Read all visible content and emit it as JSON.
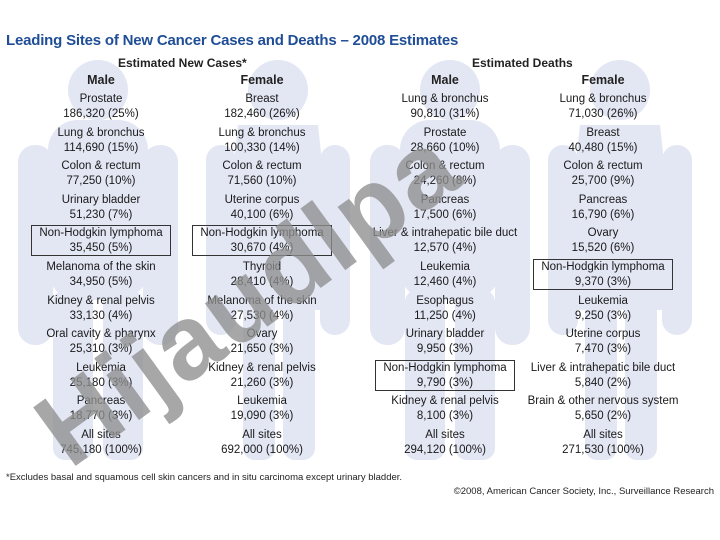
{
  "title": "Leading Sites of New Cancer Cases and Deaths – 2008 Estimates",
  "groups": {
    "new_cases": "Estimated New Cases*",
    "deaths": "Estimated Deaths"
  },
  "columns": [
    {
      "header": "Male",
      "entries": [
        {
          "site": "Prostate",
          "value": "186,320 (25%)"
        },
        {
          "site": "Lung & bronchus",
          "value": "114,690 (15%)"
        },
        {
          "site": "Colon & rectum",
          "value": "77,250 (10%)"
        },
        {
          "site": "Urinary bladder",
          "value": "51,230 (7%)"
        },
        {
          "site": "Non-Hodgkin lymphoma",
          "value": "35,450 (5%)",
          "boxed": true
        },
        {
          "site": "Melanoma of the skin",
          "value": "34,950 (5%)"
        },
        {
          "site": "Kidney & renal pelvis",
          "value": "33,130 (4%)"
        },
        {
          "site": "Oral cavity & pharynx",
          "value": "25,310 (3%)"
        },
        {
          "site": "Leukemia",
          "value": "25,180 (3%)"
        },
        {
          "site": "Pancreas",
          "value": "18,770 (3%)"
        },
        {
          "site": "All sites",
          "value": "745,180 (100%)"
        }
      ]
    },
    {
      "header": "Female",
      "entries": [
        {
          "site": "Breast",
          "value": "182,460 (26%)"
        },
        {
          "site": "Lung & bronchus",
          "value": "100,330 (14%)"
        },
        {
          "site": "Colon & rectum",
          "value": "71,560 (10%)"
        },
        {
          "site": "Uterine corpus",
          "value": "40,100 (6%)"
        },
        {
          "site": "Non-Hodgkin lymphoma",
          "value": "30,670 (4%)",
          "boxed": true
        },
        {
          "site": "Thyroid",
          "value": "28,410 (4%)"
        },
        {
          "site": "Melanoma of the skin",
          "value": "27,530 (4%)"
        },
        {
          "site": "Ovary",
          "value": "21,650 (3%)"
        },
        {
          "site": "Kidney & renal pelvis",
          "value": "21,260 (3%)"
        },
        {
          "site": "Leukemia",
          "value": "19,090 (3%)"
        },
        {
          "site": "All sites",
          "value": "692,000 (100%)"
        }
      ]
    },
    {
      "header": "Male",
      "entries": [
        {
          "site": "Lung & bronchus",
          "value": "90,810 (31%)"
        },
        {
          "site": "Prostate",
          "value": "28,660 (10%)"
        },
        {
          "site": "Colon & rectum",
          "value": "24,260 (8%)"
        },
        {
          "site": "Pancreas",
          "value": "17,500 (6%)"
        },
        {
          "site": "Liver & intrahepatic bile duct",
          "value": "12,570 (4%)"
        },
        {
          "site": "Leukemia",
          "value": "12,460 (4%)"
        },
        {
          "site": "Esophagus",
          "value": "11,250 (4%)"
        },
        {
          "site": "Urinary bladder",
          "value": "9,950 (3%)"
        },
        {
          "site": "Non-Hodgkin lymphoma",
          "value": "9,790 (3%)",
          "boxed": true
        },
        {
          "site": "Kidney & renal pelvis",
          "value": "8,100 (3%)"
        },
        {
          "site": "All sites",
          "value": "294,120 (100%)"
        }
      ]
    },
    {
      "header": "Female",
      "entries": [
        {
          "site": "Lung & bronchus",
          "value": "71,030 (26%)"
        },
        {
          "site": "Breast",
          "value": "40,480 (15%)"
        },
        {
          "site": "Colon & rectum",
          "value": "25,700 (9%)"
        },
        {
          "site": "Pancreas",
          "value": "16,790 (6%)"
        },
        {
          "site": "Ovary",
          "value": "15,520 (6%)"
        },
        {
          "site": "Non-Hodgkin lymphoma",
          "value": "9,370 (3%)",
          "boxed": true
        },
        {
          "site": "Leukemia",
          "value": "9,250 (3%)"
        },
        {
          "site": "Uterine corpus",
          "value": "7,470 (3%)"
        },
        {
          "site": "Liver & intrahepatic bile duct",
          "value": "5,840 (2%)"
        },
        {
          "site": "Brain & other nervous system",
          "value": "5,650 (2%)"
        },
        {
          "site": "All sites",
          "value": "271,530 (100%)"
        }
      ]
    }
  ],
  "watermark": {
    "text": "Hijaudlpa",
    "color": "#8e8e8e"
  },
  "silhouette_color": "#e3e6f3",
  "title_color": "#1f4e96",
  "footnote": "*Excludes basal and squamous cell skin cancers and in situ carcinoma except urinary bladder.",
  "copyright": "©2008, American Cancer Society, Inc., Surveillance Research"
}
